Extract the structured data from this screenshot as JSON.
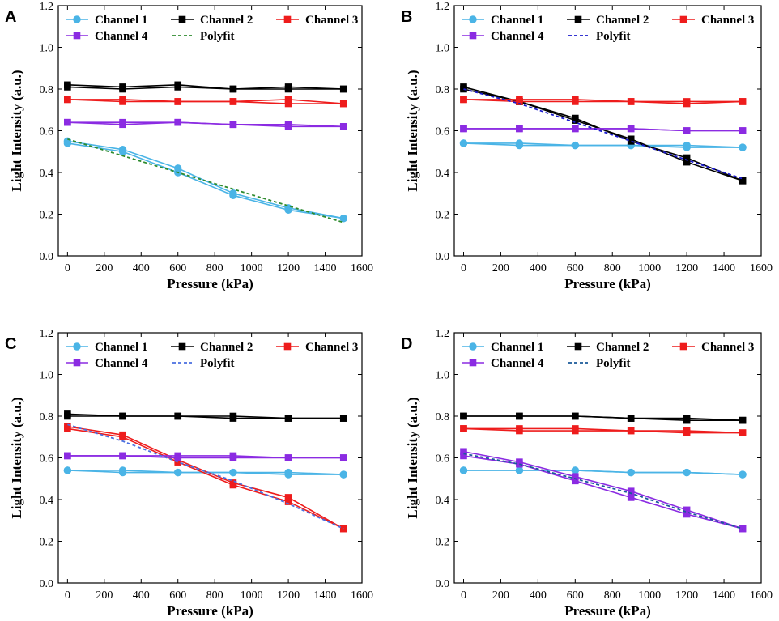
{
  "figure": {
    "colors": {
      "Channel 1": "#4ab4e6",
      "Channel 2": "#000000",
      "Channel 3": "#ee1c1c",
      "Channel 4": "#8b2be2"
    }
  },
  "chart_data": [
    {
      "panel": "A",
      "type": "line",
      "xlabel": "Pressure (kPa)",
      "ylabel": "Light Intensity (a.u.)",
      "xlim": [
        -50,
        1600
      ],
      "ylim": [
        0,
        1.2
      ],
      "xticks": [
        0,
        200,
        400,
        600,
        800,
        1000,
        1200,
        1400,
        1600
      ],
      "yticks": [
        0.0,
        0.2,
        0.4,
        0.6,
        0.8,
        1.0,
        1.2
      ],
      "x": [
        0,
        300,
        600,
        900,
        1200,
        1500
      ],
      "legend_names": [
        "Channel 1",
        "Channel 2",
        "Channel 3",
        "Channel 4",
        "Polyfit"
      ],
      "polyfit_color": "#2e8b2e",
      "series": [
        {
          "name": "Channel 1",
          "color": "#4ab4e6",
          "marker": "circle",
          "values": [
            0.55,
            0.51,
            0.42,
            0.3,
            0.23,
            0.18
          ],
          "values_return": [
            0.54,
            0.5,
            0.4,
            0.29,
            0.22,
            0.18
          ]
        },
        {
          "name": "Channel 2",
          "color": "#000000",
          "marker": "square",
          "values": [
            0.82,
            0.81,
            0.82,
            0.8,
            0.81,
            0.8
          ],
          "values_return": [
            0.81,
            0.8,
            0.81,
            0.8,
            0.8,
            0.8
          ]
        },
        {
          "name": "Channel 3",
          "color": "#ee1c1c",
          "marker": "square",
          "values": [
            0.75,
            0.75,
            0.74,
            0.74,
            0.75,
            0.73
          ],
          "values_return": [
            0.75,
            0.74,
            0.74,
            0.74,
            0.73,
            0.73
          ]
        },
        {
          "name": "Channel 4",
          "color": "#8b2be2",
          "marker": "square",
          "values": [
            0.64,
            0.64,
            0.64,
            0.63,
            0.63,
            0.62
          ],
          "values_return": [
            0.64,
            0.63,
            0.64,
            0.63,
            0.62,
            0.62
          ]
        }
      ],
      "polyfit": {
        "x": [
          0,
          300,
          600,
          900,
          1200,
          1500
        ],
        "values": [
          0.56,
          0.48,
          0.4,
          0.32,
          0.24,
          0.16
        ]
      }
    },
    {
      "panel": "B",
      "type": "line",
      "xlabel": "Pressure (kPa)",
      "ylabel": "Light Intensity (a.u.)",
      "xlim": [
        -50,
        1600
      ],
      "ylim": [
        0,
        1.2
      ],
      "xticks": [
        0,
        200,
        400,
        600,
        800,
        1000,
        1200,
        1400,
        1600
      ],
      "yticks": [
        0.0,
        0.2,
        0.4,
        0.6,
        0.8,
        1.0,
        1.2
      ],
      "x": [
        0,
        300,
        600,
        900,
        1200,
        1500
      ],
      "legend_names": [
        "Channel 1",
        "Channel 2",
        "Channel 3",
        "Channel 4",
        "Polyfit"
      ],
      "polyfit_color": "#1a1acc",
      "series": [
        {
          "name": "Channel 1",
          "color": "#4ab4e6",
          "marker": "circle",
          "values": [
            0.54,
            0.54,
            0.53,
            0.53,
            0.53,
            0.52
          ],
          "values_return": [
            0.54,
            0.53,
            0.53,
            0.53,
            0.52,
            0.52
          ]
        },
        {
          "name": "Channel 2",
          "color": "#000000",
          "marker": "square",
          "values": [
            0.81,
            0.74,
            0.66,
            0.55,
            0.47,
            0.36
          ],
          "values_return": [
            0.8,
            0.74,
            0.65,
            0.56,
            0.45,
            0.36
          ]
        },
        {
          "name": "Channel 3",
          "color": "#ee1c1c",
          "marker": "square",
          "values": [
            0.75,
            0.75,
            0.75,
            0.74,
            0.74,
            0.74
          ],
          "values_return": [
            0.75,
            0.74,
            0.74,
            0.74,
            0.73,
            0.74
          ]
        },
        {
          "name": "Channel 4",
          "color": "#8b2be2",
          "marker": "square",
          "values": [
            0.61,
            0.61,
            0.61,
            0.61,
            0.6,
            0.6
          ],
          "values_return": [
            0.61,
            0.61,
            0.61,
            0.61,
            0.6,
            0.6
          ]
        }
      ],
      "polyfit": {
        "x": [
          0,
          300,
          600,
          900,
          1200,
          1500
        ],
        "values": [
          0.8,
          0.73,
          0.64,
          0.55,
          0.46,
          0.37
        ]
      }
    },
    {
      "panel": "C",
      "type": "line",
      "xlabel": "Pressure (kPa)",
      "ylabel": "Light Intensity (a.u.)",
      "xlim": [
        -50,
        1600
      ],
      "ylim": [
        0,
        1.2
      ],
      "xticks": [
        0,
        200,
        400,
        600,
        800,
        1000,
        1200,
        1400,
        1600
      ],
      "yticks": [
        0.0,
        0.2,
        0.4,
        0.6,
        0.8,
        1.0,
        1.2
      ],
      "x": [
        0,
        300,
        600,
        900,
        1200,
        1500
      ],
      "legend_names": [
        "Channel 1",
        "Channel 2",
        "Channel 3",
        "Channel 4",
        "Polyfit"
      ],
      "polyfit_color": "#4a6fe0",
      "series": [
        {
          "name": "Channel 1",
          "color": "#4ab4e6",
          "marker": "circle",
          "values": [
            0.54,
            0.54,
            0.53,
            0.53,
            0.53,
            0.52
          ],
          "values_return": [
            0.54,
            0.53,
            0.53,
            0.53,
            0.52,
            0.52
          ]
        },
        {
          "name": "Channel 2",
          "color": "#000000",
          "marker": "square",
          "values": [
            0.81,
            0.8,
            0.8,
            0.8,
            0.79,
            0.79
          ],
          "values_return": [
            0.8,
            0.8,
            0.8,
            0.79,
            0.79,
            0.79
          ]
        },
        {
          "name": "Channel 3",
          "color": "#ee1c1c",
          "marker": "square",
          "values": [
            0.75,
            0.71,
            0.59,
            0.48,
            0.41,
            0.26
          ],
          "values_return": [
            0.74,
            0.7,
            0.58,
            0.47,
            0.39,
            0.26
          ]
        },
        {
          "name": "Channel 4",
          "color": "#8b2be2",
          "marker": "square",
          "values": [
            0.61,
            0.61,
            0.61,
            0.61,
            0.6,
            0.6
          ],
          "values_return": [
            0.61,
            0.61,
            0.6,
            0.6,
            0.6,
            0.6
          ]
        }
      ],
      "polyfit": {
        "x": [
          0,
          300,
          600,
          900,
          1200,
          1500
        ],
        "values": [
          0.76,
          0.68,
          0.58,
          0.49,
          0.38,
          0.26
        ]
      }
    },
    {
      "panel": "D",
      "type": "line",
      "xlabel": "Pressure (kPa)",
      "ylabel": "Light Intensity (a.u.)",
      "xlim": [
        -50,
        1600
      ],
      "ylim": [
        0,
        1.2
      ],
      "xticks": [
        0,
        200,
        400,
        600,
        800,
        1000,
        1200,
        1400,
        1600
      ],
      "yticks": [
        0.0,
        0.2,
        0.4,
        0.6,
        0.8,
        1.0,
        1.2
      ],
      "x": [
        0,
        300,
        600,
        900,
        1200,
        1500
      ],
      "legend_names": [
        "Channel 1",
        "Channel 2",
        "Channel 3",
        "Channel 4",
        "Polyfit"
      ],
      "polyfit_color": "#1a5a9a",
      "series": [
        {
          "name": "Channel 1",
          "color": "#4ab4e6",
          "marker": "circle",
          "values": [
            0.54,
            0.54,
            0.54,
            0.53,
            0.53,
            0.52
          ],
          "values_return": [
            0.54,
            0.54,
            0.54,
            0.53,
            0.53,
            0.52
          ]
        },
        {
          "name": "Channel 2",
          "color": "#000000",
          "marker": "square",
          "values": [
            0.8,
            0.8,
            0.8,
            0.79,
            0.79,
            0.78
          ],
          "values_return": [
            0.8,
            0.8,
            0.8,
            0.79,
            0.78,
            0.78
          ]
        },
        {
          "name": "Channel 3",
          "color": "#ee1c1c",
          "marker": "square",
          "values": [
            0.74,
            0.74,
            0.74,
            0.73,
            0.73,
            0.72
          ],
          "values_return": [
            0.74,
            0.73,
            0.73,
            0.73,
            0.72,
            0.72
          ]
        },
        {
          "name": "Channel 4",
          "color": "#8b2be2",
          "marker": "square",
          "values": [
            0.63,
            0.58,
            0.51,
            0.44,
            0.35,
            0.26
          ],
          "values_return": [
            0.61,
            0.57,
            0.49,
            0.41,
            0.33,
            0.26
          ]
        }
      ],
      "polyfit": {
        "x": [
          0,
          300,
          600,
          900,
          1200,
          1500
        ],
        "values": [
          0.62,
          0.57,
          0.5,
          0.43,
          0.34,
          0.26
        ]
      }
    }
  ]
}
